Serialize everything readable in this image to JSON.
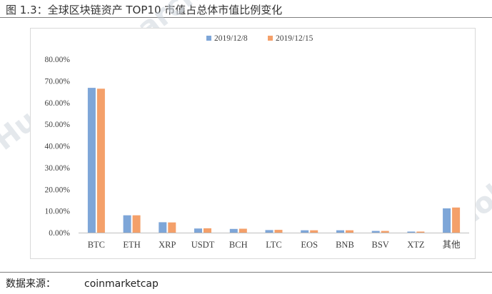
{
  "figure": {
    "title": "图 1.3：全球区块链资产 TOP10 市值占总体市值比例变化",
    "source_label": "数据来源：",
    "source_value": "coinmarketcap"
  },
  "watermark": {
    "text": "Huobi Research",
    "color": "#cfd6de"
  },
  "chart_data": {
    "type": "bar",
    "categories": [
      "BTC",
      "ETH",
      "XRP",
      "USDT",
      "BCH",
      "LTC",
      "EOS",
      "BNB",
      "BSV",
      "XTZ",
      "其他"
    ],
    "series": [
      {
        "name": "2019/12/8",
        "color": "#7ea6d8",
        "values": [
          66.8,
          8.0,
          4.8,
          1.9,
          1.7,
          1.2,
          1.1,
          1.1,
          0.8,
          0.5,
          11.2
        ]
      },
      {
        "name": "2019/12/15",
        "color": "#f4a06a",
        "values": [
          66.4,
          8.0,
          4.7,
          2.0,
          1.8,
          1.3,
          1.1,
          1.1,
          0.8,
          0.5,
          11.6
        ]
      }
    ],
    "ylim": [
      0,
      80
    ],
    "yticks": [
      "0.00%",
      "10.00%",
      "20.00%",
      "30.00%",
      "40.00%",
      "50.00%",
      "60.00%",
      "70.00%",
      "80.00%"
    ],
    "legend_position": "top-center",
    "grid": false
  }
}
